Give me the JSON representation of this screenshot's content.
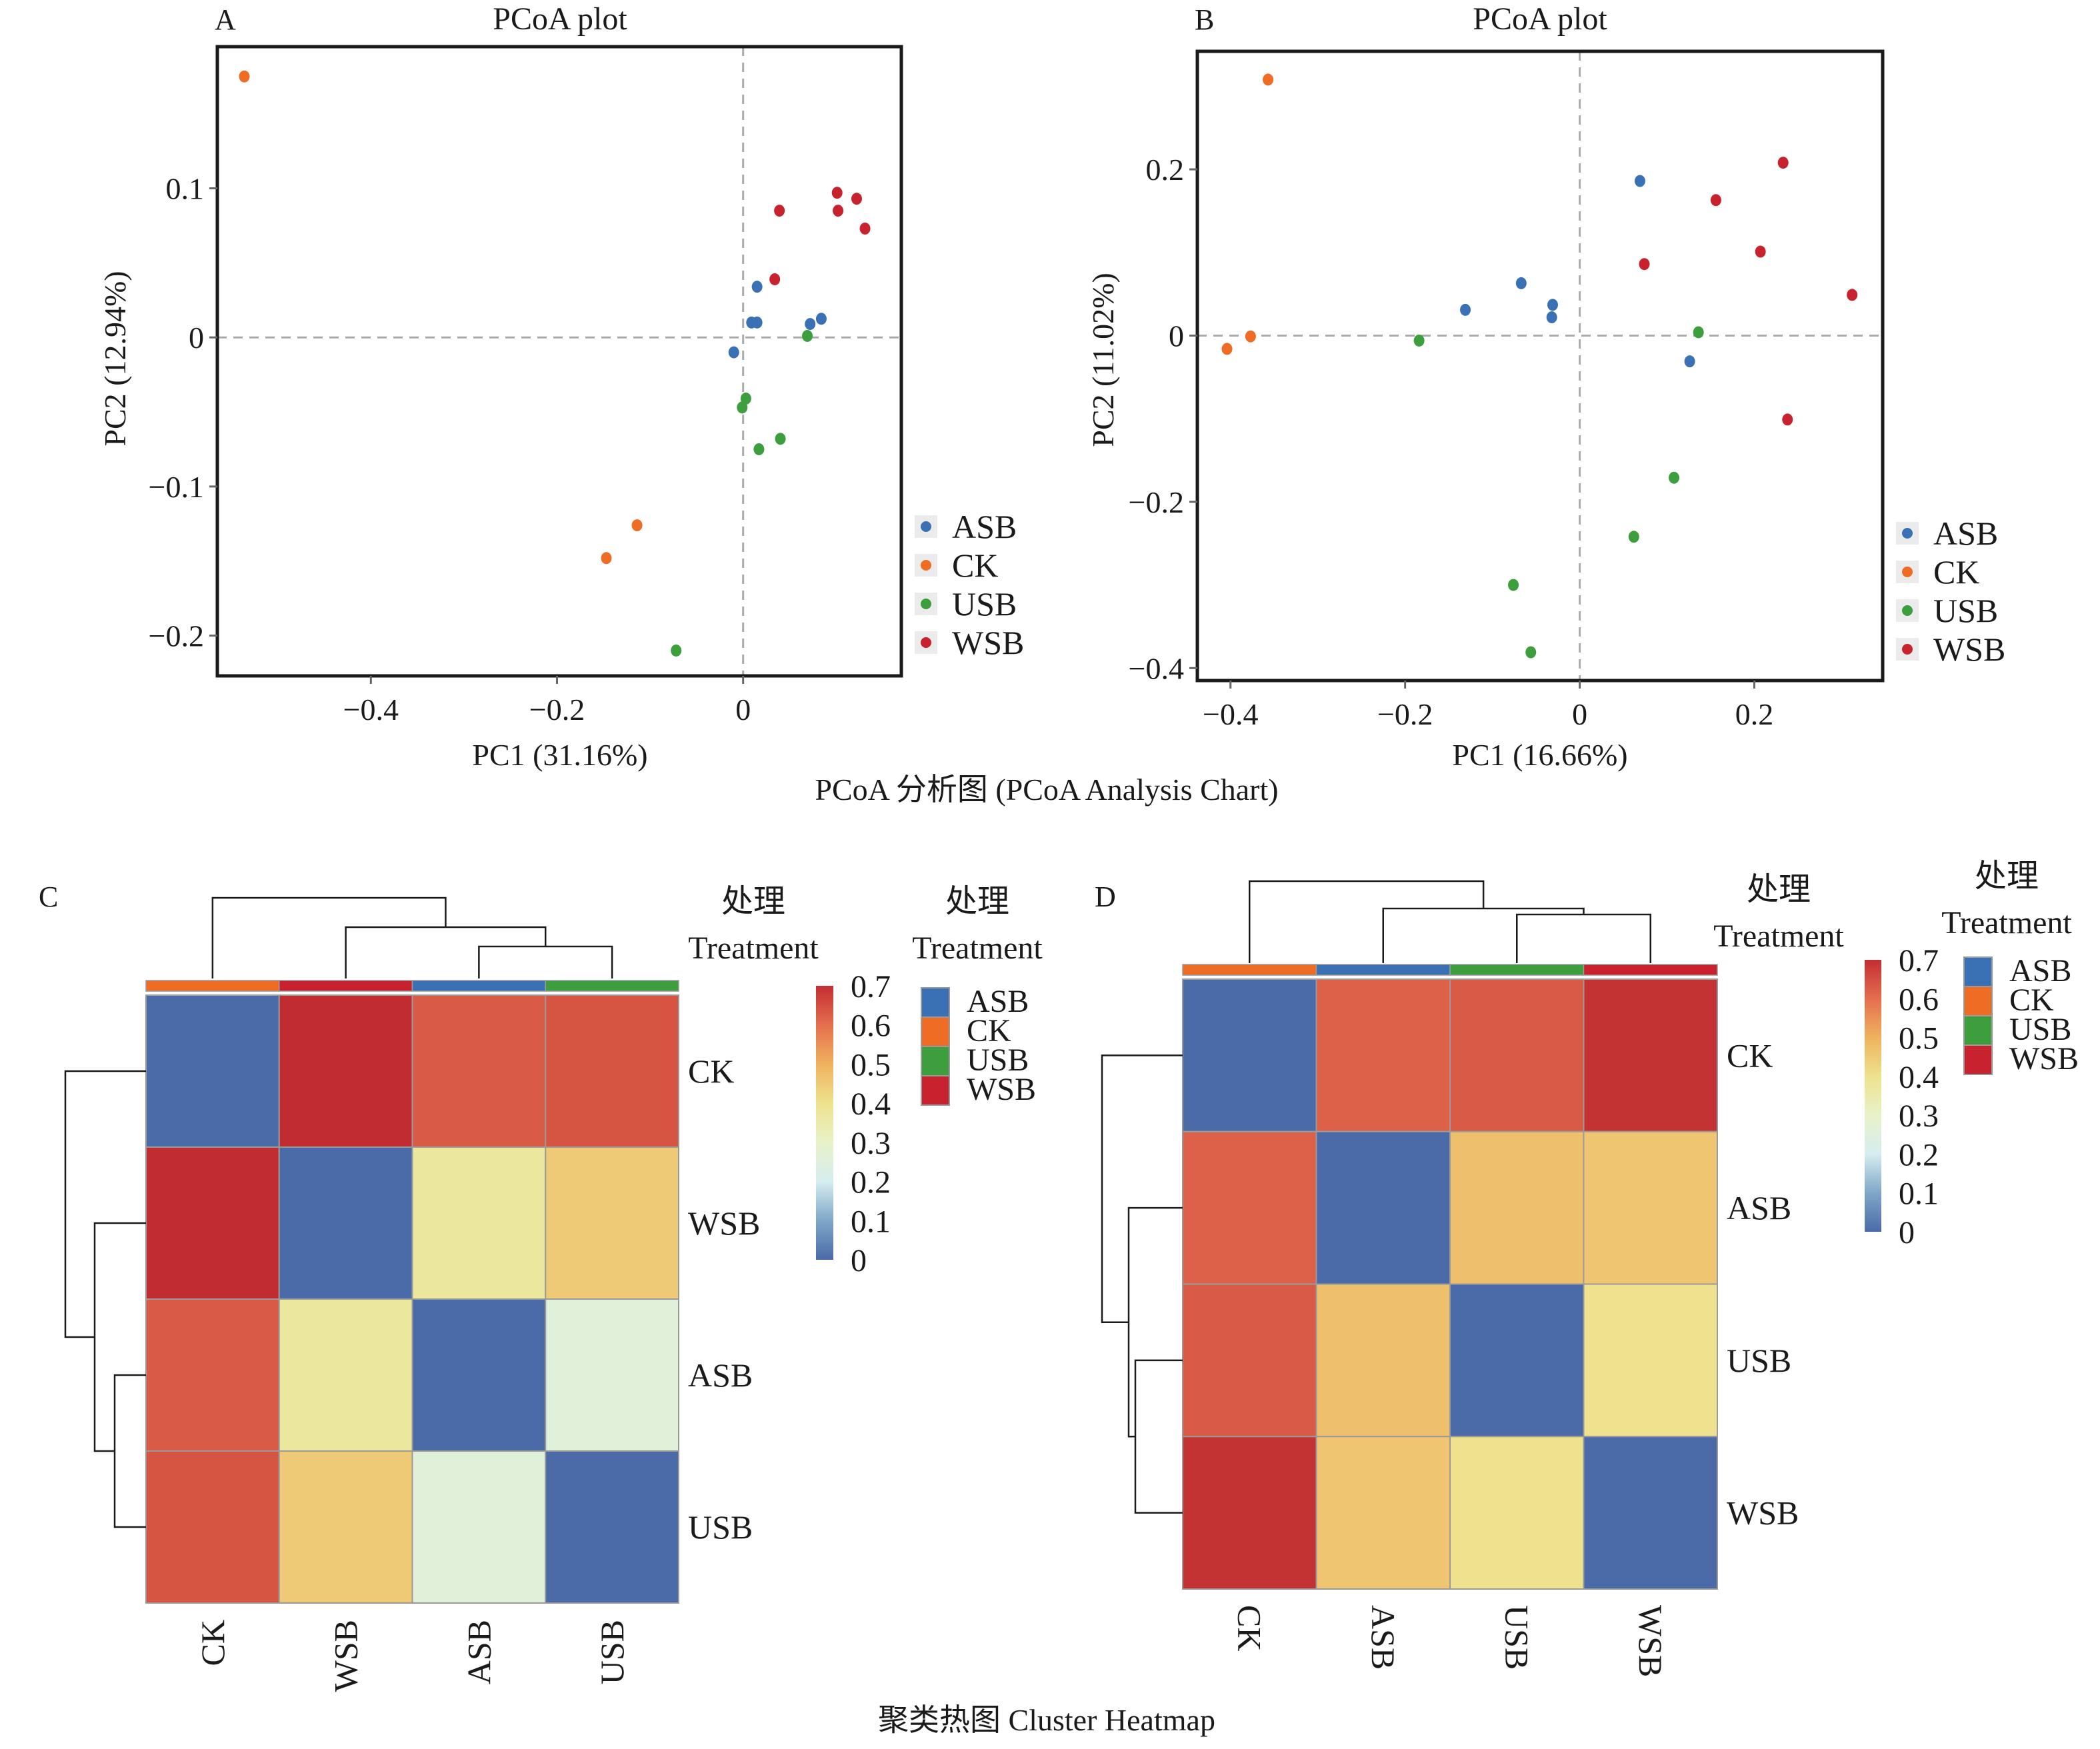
{
  "figure_captions": {
    "pcoa": "PCoA 分析图 (PCoA Analysis Chart)",
    "heatmap": "聚类热图  Cluster Heatmap"
  },
  "group_colors": {
    "ASB": "#3A71B5",
    "CK": "#EE6C24",
    "USB": "#3C9E3C",
    "WSB": "#C8222F"
  },
  "chart_data": [
    {
      "id": "A",
      "type": "scatter",
      "panel_label": "A",
      "title": "PCoA plot",
      "xlabel": "PC1 (31.16%)",
      "ylabel": "PC2 (12.94%)",
      "xlim": [
        -0.565,
        0.17
      ],
      "ylim": [
        -0.227,
        0.195
      ],
      "xticks": [
        -0.4,
        -0.2,
        0
      ],
      "xtick_labels": [
        "−0.4",
        "−0.2",
        "0"
      ],
      "yticks": [
        0.1,
        0,
        -0.1,
        -0.2
      ],
      "ytick_labels": [
        "0.1",
        "0",
        "−0.1",
        "−0.2"
      ],
      "reference_lines": {
        "x": 0,
        "y": 0,
        "style": "dashed"
      },
      "legend": {
        "position": "right-bottom",
        "entries": [
          "ASB",
          "CK",
          "USB",
          "WSB"
        ]
      },
      "series": [
        {
          "name": "ASB",
          "points": [
            [
              0.015,
              0.034
            ],
            [
              0.009,
              0.01
            ],
            [
              0.015,
              0.01
            ],
            [
              0.072,
              0.009
            ],
            [
              0.084,
              0.0125
            ],
            [
              -0.01,
              -0.01
            ]
          ]
        },
        {
          "name": "CK",
          "points": [
            [
              -0.536,
              0.175
            ],
            [
              -0.114,
              -0.126
            ],
            [
              -0.147,
              -0.148
            ]
          ]
        },
        {
          "name": "USB",
          "points": [
            [
              0.069,
              0.001
            ],
            [
              0.003,
              -0.041
            ],
            [
              -0.001,
              -0.047
            ],
            [
              0.04,
              -0.068
            ],
            [
              0.017,
              -0.075
            ],
            [
              -0.072,
              -0.21
            ]
          ]
        },
        {
          "name": "WSB",
          "points": [
            [
              0.101,
              0.097
            ],
            [
              0.122,
              0.093
            ],
            [
              0.039,
              0.085
            ],
            [
              0.102,
              0.085
            ],
            [
              0.131,
              0.073
            ],
            [
              0.034,
              0.039
            ]
          ]
        }
      ]
    },
    {
      "id": "B",
      "type": "scatter",
      "panel_label": "B",
      "title": "PCoA plot",
      "xlabel": "PC1 (16.66%)",
      "ylabel": "PC2 (11.02%)",
      "xlim": [
        -0.438,
        0.347
      ],
      "ylim": [
        -0.415,
        0.342
      ],
      "xticks": [
        -0.4,
        -0.2,
        0,
        0.2
      ],
      "xtick_labels": [
        "−0.4",
        "−0.2",
        "0",
        "0.2"
      ],
      "yticks": [
        0.2,
        0,
        -0.2,
        -0.4
      ],
      "ytick_labels": [
        "0.2",
        "0",
        "−0.2",
        "−0.4"
      ],
      "reference_lines": {
        "x": 0,
        "y": 0,
        "style": "dashed"
      },
      "legend": {
        "position": "right-bottom",
        "entries": [
          "ASB",
          "CK",
          "USB",
          "WSB"
        ]
      },
      "series": [
        {
          "name": "ASB",
          "points": [
            [
              0.069,
              0.186
            ],
            [
              -0.067,
              0.063
            ],
            [
              -0.131,
              0.031
            ],
            [
              -0.031,
              0.037
            ],
            [
              -0.032,
              0.022
            ],
            [
              0.126,
              -0.031
            ]
          ]
        },
        {
          "name": "CK",
          "points": [
            [
              -0.357,
              0.308
            ],
            [
              -0.377,
              -0.001
            ],
            [
              -0.404,
              -0.016
            ]
          ]
        },
        {
          "name": "USB",
          "points": [
            [
              -0.184,
              -0.006
            ],
            [
              0.136,
              0.004
            ],
            [
              0.108,
              -0.171
            ],
            [
              0.062,
              -0.242
            ],
            [
              -0.076,
              -0.3
            ],
            [
              -0.056,
              -0.381
            ]
          ]
        },
        {
          "name": "WSB",
          "points": [
            [
              0.233,
              0.208
            ],
            [
              0.156,
              0.163
            ],
            [
              0.207,
              0.101
            ],
            [
              0.074,
              0.086
            ],
            [
              0.312,
              0.049
            ],
            [
              0.238,
              -0.101
            ]
          ]
        }
      ]
    },
    {
      "id": "C",
      "type": "heatmap",
      "panel_label": "C",
      "row_labels": [
        "CK",
        "WSB",
        "ASB",
        "USB"
      ],
      "col_labels": [
        "CK",
        "WSB",
        "ASB",
        "USB"
      ],
      "col_label_rotation": "bottom-to-top",
      "values": [
        [
          0.0,
          0.7,
          0.63,
          0.64
        ],
        [
          0.7,
          0.0,
          0.37,
          0.45
        ],
        [
          0.63,
          0.37,
          0.0,
          0.26
        ],
        [
          0.64,
          0.45,
          0.26,
          0.0
        ]
      ],
      "annotation_title_cn": "处理",
      "annotation_title_en": "Treatment",
      "annotation_legend": [
        "ASB",
        "CK",
        "USB",
        "WSB"
      ],
      "colorbar": {
        "min": 0,
        "max": 0.7,
        "ticks": [
          "0.7",
          "0.6",
          "0.5",
          "0.4",
          "0.3",
          "0.2",
          "0.1",
          "0"
        ]
      },
      "col_dendrogram": "(CK, (WSB, (ASB, USB)))",
      "row_dendrogram": "(CK, (WSB, (ASB, USB)))"
    },
    {
      "id": "D",
      "type": "heatmap",
      "panel_label": "D",
      "row_labels": [
        "CK",
        "ASB",
        "USB",
        "WSB"
      ],
      "col_labels": [
        "CK",
        "ASB",
        "USB",
        "WSB"
      ],
      "col_label_rotation": "top-to-bottom",
      "values": [
        [
          0.0,
          0.62,
          0.63,
          0.69
        ],
        [
          0.62,
          0.0,
          0.47,
          0.46
        ],
        [
          0.63,
          0.47,
          0.0,
          0.4
        ],
        [
          0.69,
          0.46,
          0.4,
          0.0
        ]
      ],
      "annotation_title_cn": "处理",
      "annotation_title_en": "Treatment",
      "annotation_legend": [
        "ASB",
        "CK",
        "USB",
        "WSB"
      ],
      "colorbar": {
        "min": 0,
        "max": 0.7,
        "ticks": [
          "0.7",
          "0.6",
          "0.5",
          "0.4",
          "0.3",
          "0.2",
          "0.1",
          "0"
        ]
      },
      "col_dendrogram": "(CK, (ASB, (USB, WSB)))",
      "row_dendrogram": "(CK, (ASB, (USB, WSB)))"
    }
  ]
}
